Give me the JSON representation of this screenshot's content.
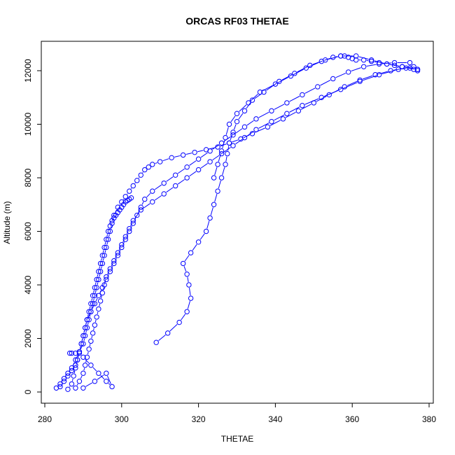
{
  "chart_data": {
    "type": "scatter",
    "title": "ORCAS RF03 THETAE",
    "xlabel": "THETAE",
    "ylabel": "Altitude (m)",
    "xlim": [
      280,
      380
    ],
    "ylim": [
      0,
      12800
    ],
    "x_ticks": [
      280,
      300,
      320,
      340,
      360,
      380
    ],
    "y_ticks": [
      0,
      2000,
      4000,
      6000,
      8000,
      10000,
      12000
    ],
    "grid": false,
    "legend": "none",
    "color": "#0000ff",
    "marker": "open-circle",
    "line_style": "connected",
    "series": [
      {
        "x": [
          283,
          284,
          285,
          286,
          287,
          288,
          289,
          290,
          290.5,
          291,
          291.5,
          292,
          292.5,
          293,
          293.5,
          294,
          294.5,
          295,
          295.5,
          296,
          296.5,
          297,
          297.5,
          298,
          299,
          300,
          301,
          302,
          303,
          304,
          305,
          306,
          307,
          308,
          310,
          313,
          316,
          319,
          322,
          325,
          328,
          331,
          334,
          338,
          342,
          346,
          350,
          354,
          358,
          362,
          366,
          370,
          374,
          377
        ],
        "y": [
          150,
          300,
          500,
          700,
          900,
          1200,
          1500,
          1800,
          2100,
          2400,
          2700,
          3000,
          3300,
          3600,
          3900,
          4200,
          4500,
          4800,
          5100,
          5400,
          5700,
          6000,
          6300,
          6600,
          6900,
          7100,
          7300,
          7500,
          7700,
          7900,
          8100,
          8300,
          8400,
          8500,
          8600,
          8750,
          8850,
          8950,
          9050,
          9150,
          9300,
          9450,
          9650,
          9900,
          10200,
          10500,
          10800,
          11100,
          11400,
          11650,
          11850,
          12000,
          12100,
          12050
        ]
      },
      {
        "x": [
          284,
          285,
          286,
          287,
          288,
          288.5,
          289,
          289.5,
          290,
          290.5,
          291,
          291.5,
          292,
          292.5,
          293,
          293.5,
          294,
          294.5,
          295,
          295.5,
          296,
          296.5,
          297,
          297.5,
          298,
          298.5,
          299,
          299.5,
          300,
          300.5,
          301,
          301.5,
          302,
          302.5
        ],
        "y": [
          200,
          400,
          600,
          800,
          1000,
          1200,
          1500,
          1800,
          2100,
          2400,
          2700,
          3000,
          3300,
          3600,
          3900,
          4200,
          4500,
          4800,
          5100,
          5400,
          5700,
          6000,
          6200,
          6400,
          6500,
          6600,
          6700,
          6800,
          6900,
          7000,
          7100,
          7150,
          7200,
          7250
        ]
      },
      {
        "x": [
          286,
          287,
          287.5,
          288,
          288.5,
          289,
          289.5,
          290,
          290.5,
          291,
          292,
          293,
          294,
          295,
          296,
          297,
          298,
          299,
          300,
          301,
          302,
          303,
          304,
          305,
          306,
          308,
          311,
          314,
          317,
          320,
          323,
          326,
          329,
          332,
          335,
          339,
          343,
          347,
          351,
          355,
          359,
          363,
          367,
          371,
          375
        ],
        "y": [
          100,
          300,
          600,
          900,
          1200,
          1500,
          1800,
          2100,
          2400,
          2700,
          3000,
          3300,
          3600,
          3900,
          4200,
          4500,
          4800,
          5100,
          5400,
          5700,
          6000,
          6300,
          6600,
          6900,
          7200,
          7500,
          7800,
          8100,
          8400,
          8700,
          9000,
          9300,
          9600,
          9900,
          10200,
          10500,
          10800,
          11100,
          11400,
          11700,
          11950,
          12150,
          12250,
          12300,
          12300
        ]
      },
      {
        "x": [
          288,
          289,
          290,
          290.5,
          291,
          291.5,
          292,
          292.5,
          293,
          293.5,
          294,
          294.5,
          295,
          295.5,
          296,
          297,
          298,
          299,
          300,
          301,
          302,
          303,
          305,
          308,
          311,
          314,
          317,
          320,
          323,
          326,
          329,
          332,
          335,
          339,
          343,
          347,
          352,
          357,
          362,
          367,
          372,
          376
        ],
        "y": [
          150,
          400,
          700,
          1000,
          1300,
          1600,
          1900,
          2200,
          2500,
          2800,
          3100,
          3400,
          3700,
          4000,
          4300,
          4600,
          4900,
          5200,
          5500,
          5800,
          6100,
          6400,
          6800,
          7100,
          7400,
          7700,
          8000,
          8300,
          8600,
          8900,
          9200,
          9500,
          9800,
          10100,
          10400,
          10700,
          11000,
          11300,
          11600,
          11850,
          12050,
          12150
        ]
      },
      {
        "x": [
          290,
          293,
          296,
          297.5,
          296,
          294,
          292,
          290,
          289,
          288,
          287,
          286.5
        ],
        "y": [
          150,
          400,
          700,
          200,
          400,
          700,
          1000,
          1300,
          1450,
          1450,
          1450,
          1450
        ]
      },
      {
        "x": [
          309,
          312,
          315,
          317,
          318,
          317.5,
          317,
          316,
          318,
          320,
          322,
          323,
          324,
          325,
          326,
          327,
          327.5,
          328,
          329,
          330,
          332,
          334,
          337,
          341,
          345,
          349,
          353,
          357,
          361,
          365,
          369,
          373,
          377
        ],
        "y": [
          1850,
          2200,
          2600,
          3000,
          3500,
          4000,
          4400,
          4800,
          5200,
          5600,
          6000,
          6500,
          7000,
          7500,
          8000,
          8500,
          8900,
          9300,
          9700,
          10100,
          10500,
          10900,
          11200,
          11600,
          11900,
          12200,
          12400,
          12550,
          12550,
          12400,
          12250,
          12150,
          12050
        ]
      },
      {
        "x": [
          324,
          325,
          326,
          327,
          328,
          330,
          333,
          336,
          340,
          344,
          348,
          352,
          355,
          357,
          358,
          359,
          360,
          361,
          363,
          365,
          367,
          369,
          371,
          373,
          375,
          376,
          377
        ],
        "y": [
          8000,
          8500,
          9000,
          9500,
          10000,
          10400,
          10800,
          11200,
          11500,
          11800,
          12100,
          12350,
          12500,
          12550,
          12550,
          12500,
          12450,
          12400,
          12400,
          12350,
          12300,
          12250,
          12200,
          12150,
          12100,
          12050,
          12000
        ]
      }
    ]
  }
}
